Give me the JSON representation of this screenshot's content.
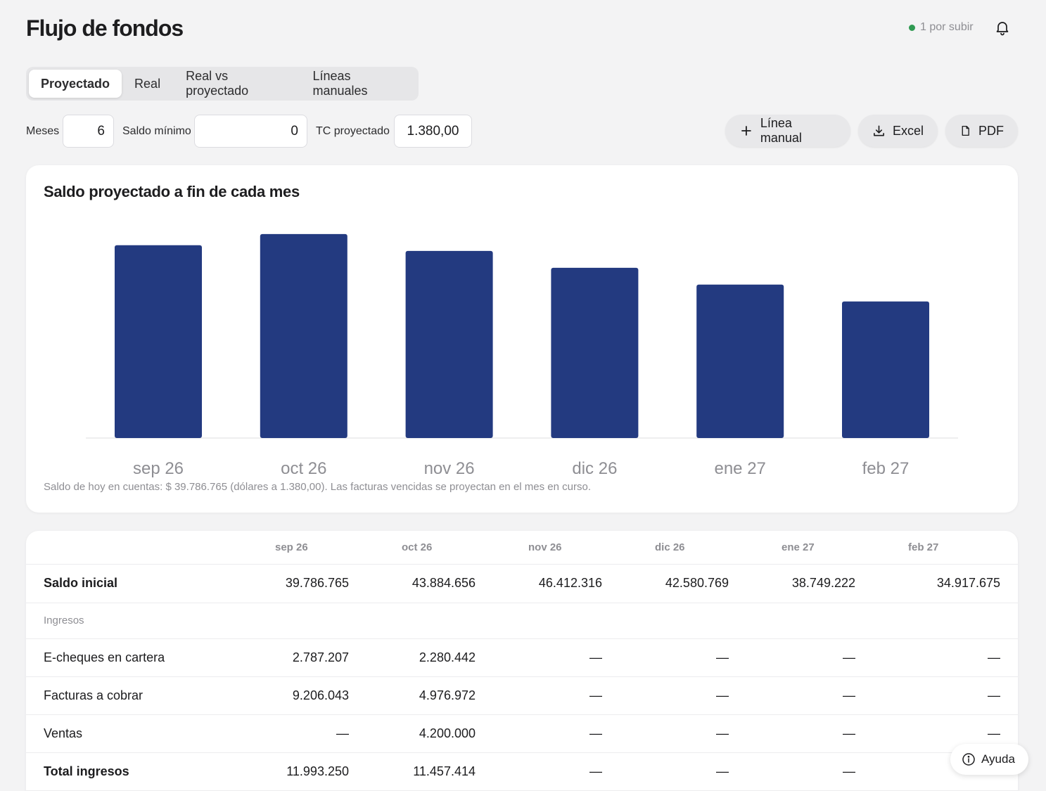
{
  "header": {
    "title": "Flujo de fondos",
    "pending_text": "1 por subir",
    "pending_color": "#2f9a52"
  },
  "tabs": [
    {
      "label": "Proyectado",
      "active": true
    },
    {
      "label": "Real",
      "active": false
    },
    {
      "label": "Real vs proyectado",
      "active": false
    },
    {
      "label": "Líneas manuales",
      "active": false
    }
  ],
  "controls": {
    "meses_label": "Meses",
    "meses_value": "6",
    "saldo_minimo_label": "Saldo mínimo",
    "saldo_minimo_value": "0",
    "tc_label": "TC proyectado",
    "tc_value": "1.380,00"
  },
  "actions": {
    "linea_manual": "Línea manual",
    "excel": "Excel",
    "pdf": "PDF"
  },
  "chart_card": {
    "title": "Saldo proyectado a fin de cada mes",
    "note": "Saldo de hoy en cuentas: $ 39.786.765 (dólares a 1.380,00). Las facturas vencidas se proyectan en el mes en curso."
  },
  "chart_data": {
    "type": "bar",
    "title": "Saldo proyectado a fin de cada mes",
    "categories": [
      "sep 26",
      "oct 26",
      "nov 26",
      "dic 26",
      "ene 27",
      "feb 27"
    ],
    "values": [
      43884656,
      46412316,
      42580769,
      38749222,
      34917675,
      31086128
    ],
    "bar_color": "#233a80",
    "grid": false,
    "ylim": [
      0,
      48000000
    ]
  },
  "table": {
    "columns": [
      "",
      "sep 26",
      "oct 26",
      "nov 26",
      "dic 26",
      "ene 27",
      "feb 27"
    ],
    "saldo_inicial": {
      "label": "Saldo inicial",
      "values": [
        "39.786.765",
        "43.884.656",
        "46.412.316",
        "42.580.769",
        "38.749.222",
        "34.917.675"
      ]
    },
    "section_ingresos": "Ingresos",
    "rows": [
      {
        "label": "E-cheques en cartera",
        "values": [
          "2.787.207",
          "2.280.442",
          "—",
          "—",
          "—",
          "—"
        ]
      },
      {
        "label": "Facturas a cobrar",
        "values": [
          "9.206.043",
          "4.976.972",
          "—",
          "—",
          "—",
          "—"
        ]
      },
      {
        "label": "Ventas",
        "values": [
          "—",
          "4.200.000",
          "—",
          "—",
          "—",
          "—"
        ]
      }
    ],
    "total_ingresos": {
      "label": "Total ingresos",
      "values": [
        "11.993.250",
        "11.457.414",
        "—",
        "—",
        "—",
        ""
      ]
    }
  },
  "help": {
    "label": "Ayuda"
  }
}
